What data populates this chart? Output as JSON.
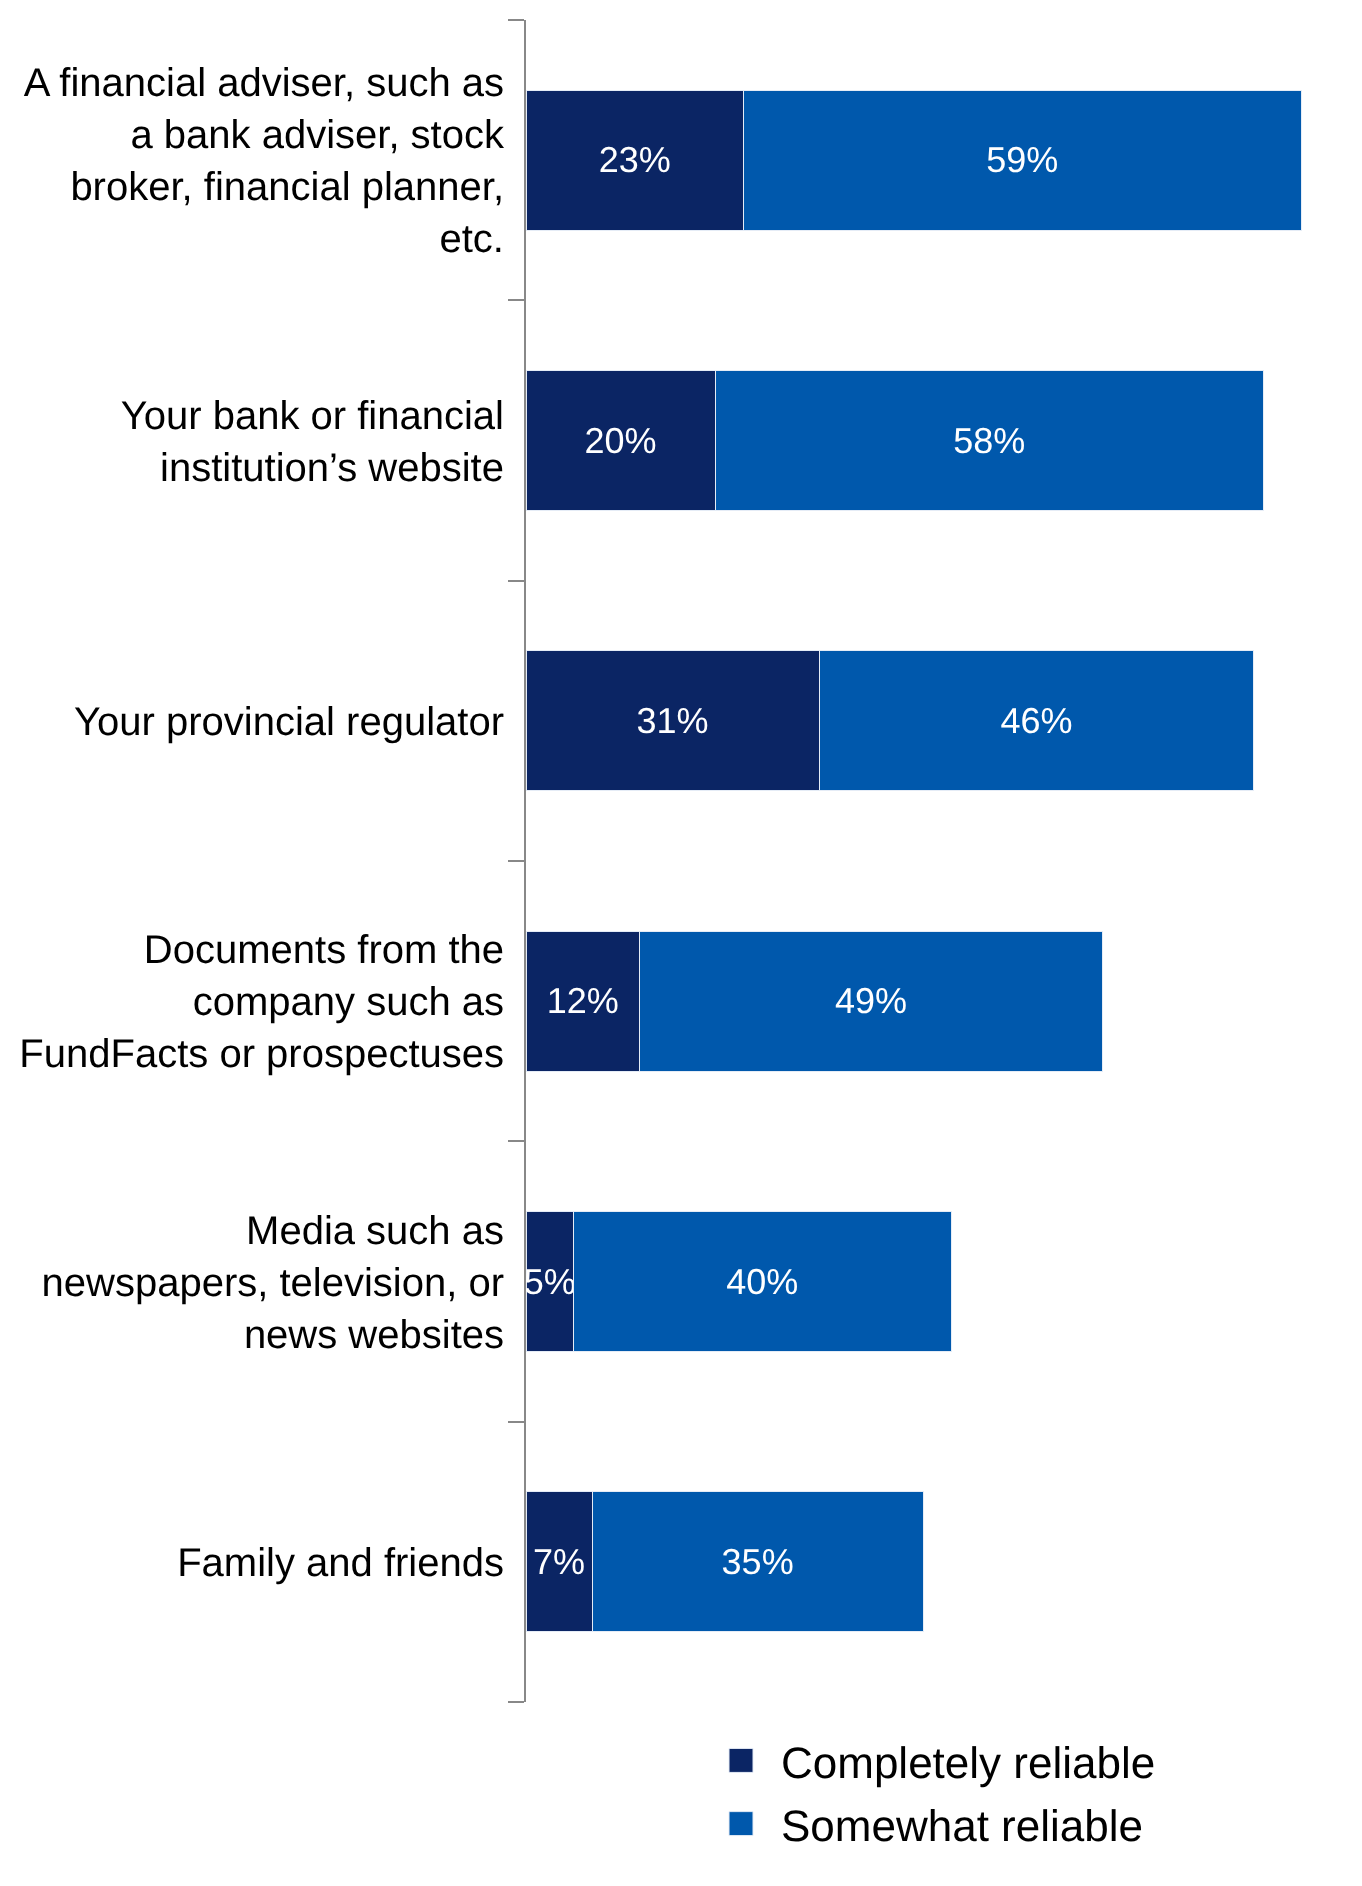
{
  "chart_data": {
    "type": "bar",
    "orientation": "horizontal",
    "stacked": true,
    "legend": "bottom",
    "tick_labels": "y",
    "categories": [
      "A financial adviser, such as\na bank adviser, stock\nbroker, financial planner,\netc.",
      "Your bank or financial\ninstitution’s website",
      "Your provincial regulator",
      "Documents from the\ncompany such as\nFundFacts or prospectuses",
      "Media such as\nnewspapers, television, or\nnews websites",
      "Family and friends"
    ],
    "series": [
      {
        "name": "Completely reliable",
        "color": "#0b2564",
        "values": [
          23,
          20,
          31,
          12,
          5,
          7
        ],
        "value_labels": [
          "23%",
          "20%",
          "31%",
          "12%",
          "5%",
          "7%"
        ]
      },
      {
        "name": "Somewhat reliable",
        "color": "#0058ac",
        "values": [
          59,
          58,
          46,
          49,
          40,
          35
        ],
        "value_labels": [
          "59%",
          "58%",
          "46%",
          "49%",
          "40%",
          "35%"
        ]
      }
    ]
  }
}
